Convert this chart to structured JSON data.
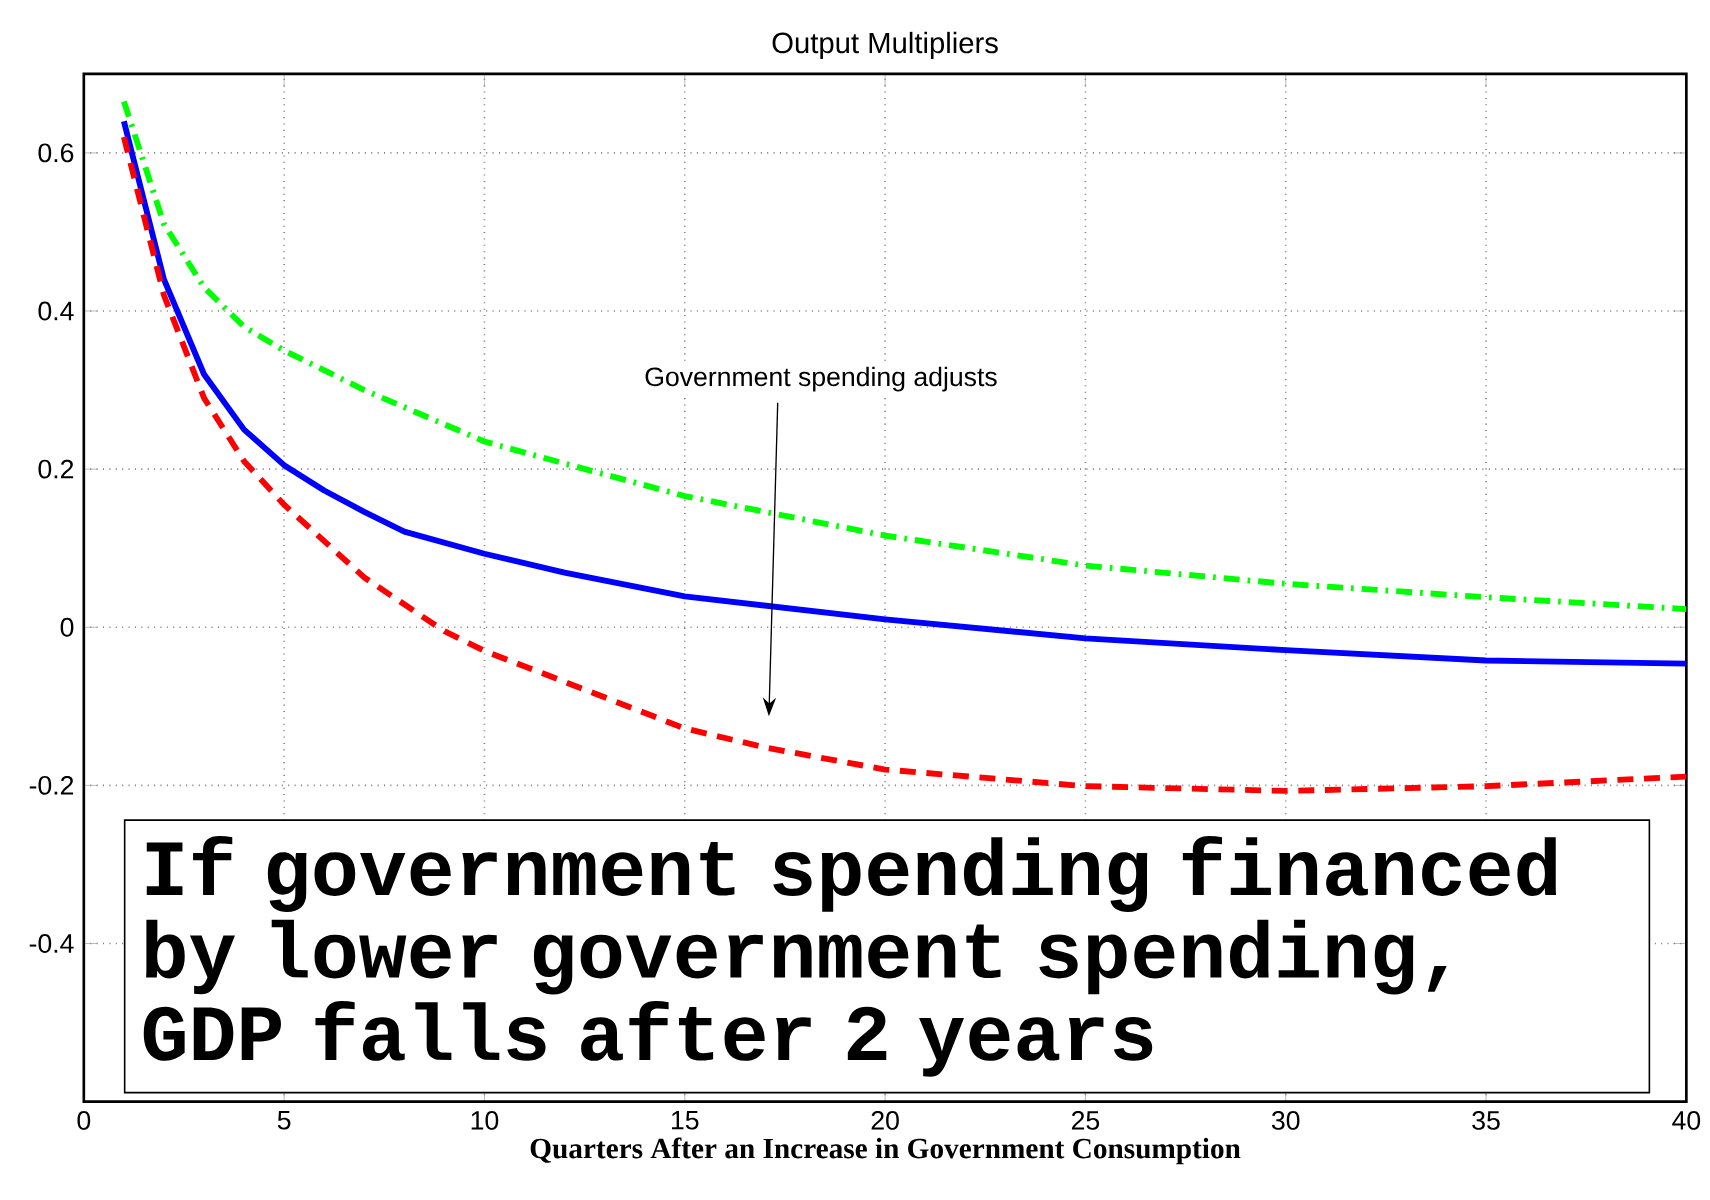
{
  "chart_data": {
    "type": "line",
    "title": "Output Multipliers",
    "xlabel": "Quarters After an Increase in Government Consumption",
    "xlim": [
      0,
      40
    ],
    "ylim": [
      -0.6,
      0.7
    ],
    "xticks": [
      0,
      5,
      10,
      15,
      20,
      25,
      30,
      35,
      40
    ],
    "yticks": [
      -0.4,
      -0.2,
      0,
      0.2,
      0.4,
      0.6
    ],
    "grid": true,
    "series": [
      {
        "color": "#0000ff",
        "line_style": "solid",
        "x": [
          1,
          2,
          3,
          4,
          5,
          6,
          7,
          8,
          10,
          12,
          15,
          20,
          25,
          30,
          35,
          40
        ],
        "values": [
          0.64,
          0.44,
          0.32,
          0.25,
          0.205,
          0.173,
          0.146,
          0.121,
          0.093,
          0.069,
          0.039,
          0.01,
          -0.014,
          -0.029,
          -0.042,
          -0.046
        ]
      },
      {
        "color": "#00ff00",
        "line_style": "dashdot",
        "x": [
          1,
          2,
          3,
          4,
          5,
          7,
          10,
          12,
          15,
          20,
          25,
          30,
          35,
          40
        ],
        "values": [
          0.665,
          0.51,
          0.43,
          0.38,
          0.35,
          0.3,
          0.235,
          0.207,
          0.166,
          0.116,
          0.078,
          0.055,
          0.038,
          0.023
        ]
      },
      {
        "color": "#ff0000",
        "line_style": "dashed",
        "x": [
          1,
          2,
          3,
          4,
          5,
          7,
          9,
          10,
          12,
          15,
          17,
          20,
          25,
          30,
          35,
          40
        ],
        "values": [
          0.62,
          0.42,
          0.29,
          0.21,
          0.155,
          0.063,
          -0.005,
          -0.03,
          -0.069,
          -0.128,
          -0.152,
          -0.18,
          -0.201,
          -0.207,
          -0.201,
          -0.189
        ]
      }
    ],
    "annotations": [
      "Government spending adjusts",
      "If government spending financed by lower government spending, GDP falls after 2 years"
    ]
  }
}
